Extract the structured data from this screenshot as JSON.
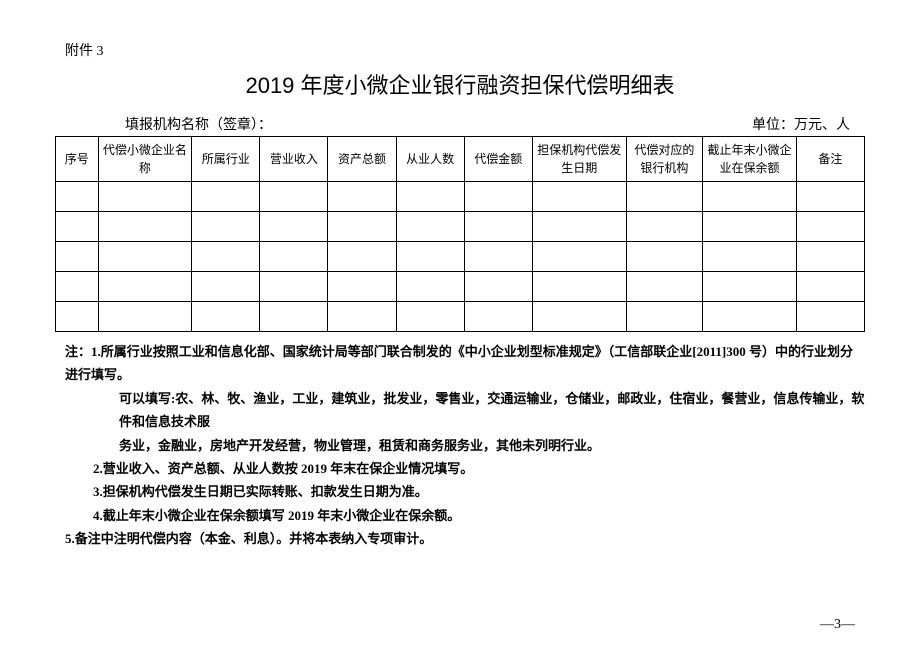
{
  "attachment": "附件 3",
  "title": "2019 年度小微企业银行融资担保代偿明细表",
  "org_label": "填报机构名称（签章）：",
  "unit_label": "单位：万元、人",
  "headers": {
    "seq": "序号",
    "name": "代偿小微企业名称",
    "industry": "所属行业",
    "revenue": "营业收入",
    "assets": "资产总额",
    "employees": "从业人数",
    "amount": "代偿金额",
    "date": "担保机构代偿发生日期",
    "bank": "代偿对应的银行机构",
    "balance": "截止年末小微企业在保余额",
    "note": "备注"
  },
  "rows": [
    {
      "c": [
        "",
        "",
        "",
        "",
        "",
        "",
        "",
        "",
        "",
        "",
        ""
      ]
    },
    {
      "c": [
        "",
        "",
        "",
        "",
        "",
        "",
        "",
        "",
        "",
        "",
        ""
      ]
    },
    {
      "c": [
        "",
        "",
        "",
        "",
        "",
        "",
        "",
        "",
        "",
        "",
        ""
      ]
    },
    {
      "c": [
        "",
        "",
        "",
        "",
        "",
        "",
        "",
        "",
        "",
        "",
        ""
      ]
    },
    {
      "c": [
        "",
        "",
        "",
        "",
        "",
        "",
        "",
        "",
        "",
        "",
        ""
      ]
    }
  ],
  "notes": {
    "n1a": "注：1.所属行业按照工业和信息化部、国家统计局等部门联合制发的《中小企业划型标准规定》（工信部联企业[2011]300 号）中的行业划分进行填写。",
    "n1b": "可以填写:农、林、牧、渔业，工业，建筑业，批发业，零售业，交通运输业，仓储业，邮政业，住宿业，餐营业，信息传输业，软件和信息技术服",
    "n1c": "务业，金融业，房地产开发经营，物业管理，租赁和商务服务业，其他未列明行业。",
    "n2": "2.营业收入、资产总额、从业人数按 2019 年末在保企业情况填写。",
    "n3": "3.担保机构代偿发生日期已实际转账、扣款发生日期为准。",
    "n4": "4.截止年末小微企业在保余额填写 2019 年末小微企业在保余额。",
    "n5": "5.备注中注明代偿内容（本金、利息）。并将本表纳入专项审计。"
  },
  "page_num": "—3—",
  "style": {
    "page_bg": "#ffffff",
    "text_color": "#000000",
    "border_color": "#000000",
    "title_fontsize": 22,
    "body_fontsize": 13,
    "table_fontsize": 12
  }
}
